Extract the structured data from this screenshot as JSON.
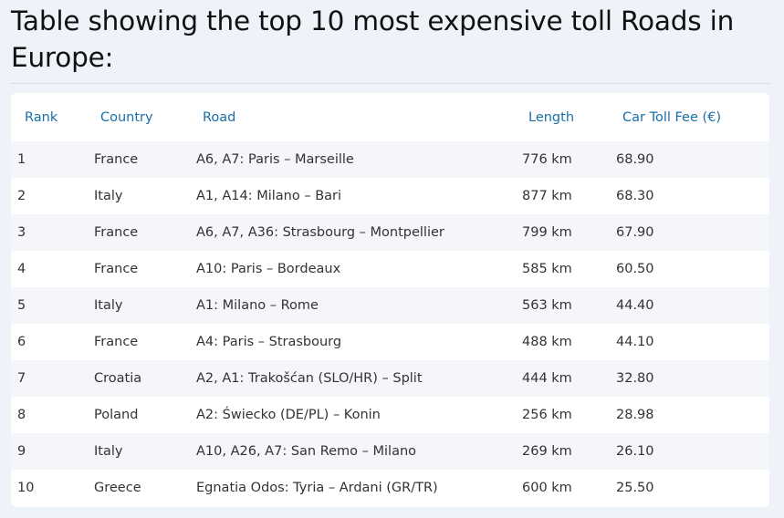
{
  "page": {
    "title": "Table showing the top 10 most expensive toll Roads in Europe:"
  },
  "table": {
    "headers": {
      "rank": "Rank",
      "country": "Country",
      "road": "Road",
      "length": "Length",
      "fee": "Car Toll Fee (€)"
    },
    "rows": [
      {
        "rank": "1",
        "country": "France",
        "road": "A6, A7: Paris – Marseille",
        "length": "776 km",
        "fee": "68.90"
      },
      {
        "rank": "2",
        "country": "Italy",
        "road": "A1, A14: Milano – Bari",
        "length": "877 km",
        "fee": "68.30"
      },
      {
        "rank": "3",
        "country": "France",
        "road": "A6, A7, A36: Strasbourg – Montpellier",
        "length": "799 km",
        "fee": "67.90"
      },
      {
        "rank": "4",
        "country": "France",
        "road": "A10: Paris – Bordeaux",
        "length": "585 km",
        "fee": "60.50"
      },
      {
        "rank": "5",
        "country": "Italy",
        "road": "A1: Milano – Rome",
        "length": "563 km",
        "fee": "44.40"
      },
      {
        "rank": "6",
        "country": "France",
        "road": "A4: Paris – Strasbourg",
        "length": "488 km",
        "fee": "44.10"
      },
      {
        "rank": "7",
        "country": "Croatia",
        "road": "A2, A1: Trakošćan (SLO/HR) – Split",
        "length": "444 km",
        "fee": "32.80"
      },
      {
        "rank": "8",
        "country": "Poland",
        "road": "A2: Świecko (DE/PL) – Konin",
        "length": "256 km",
        "fee": "28.98"
      },
      {
        "rank": "9",
        "country": "Italy",
        "road": "A10, A26, A7: San Remo – Milano",
        "length": "269 km",
        "fee": "26.10"
      },
      {
        "rank": "10",
        "country": "Greece",
        "road": "Egnatia Odos: Tyria – Ardani (GR/TR)",
        "length": "600 km",
        "fee": "25.50"
      }
    ]
  }
}
